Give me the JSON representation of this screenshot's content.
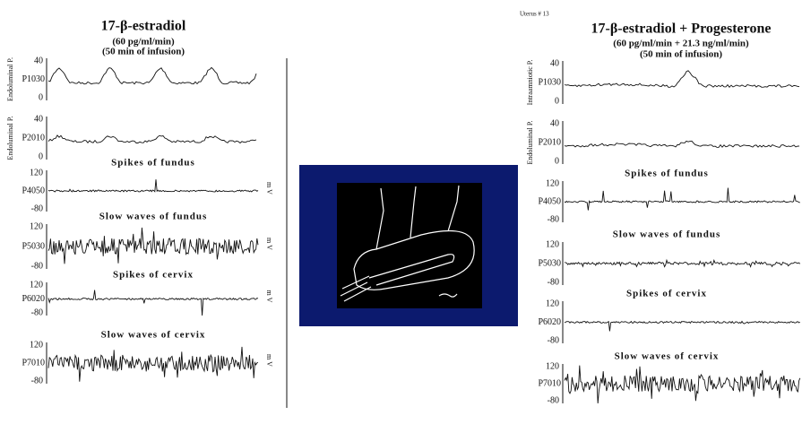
{
  "left": {
    "title": "17-β-estradiol",
    "subtitle": [
      "(60 pg/ml/min)",
      "(50 min of infusion)"
    ],
    "channels": [
      {
        "label": "Endoluminal P.",
        "name": "P1030",
        "ticks": [
          "40",
          "0"
        ]
      },
      {
        "label": "Endoluminal P.",
        "name": "P2010",
        "ticks": [
          "40",
          "0"
        ]
      },
      {
        "label": "Spikes of fundus",
        "name": "P4050",
        "ticks": [
          "120",
          "-80"
        ],
        "unit": "m V"
      },
      {
        "label": "Slow waves of fundus",
        "name": "P5030",
        "ticks": [
          "120",
          "-80"
        ],
        "unit": "m V"
      },
      {
        "label": "Spikes of cervix",
        "name": "P6020",
        "ticks": [
          "120",
          "-80"
        ],
        "unit": "m V"
      },
      {
        "label": "Slow waves of cervix",
        "name": "P7010",
        "ticks": [
          "120",
          "-80"
        ],
        "unit": "m V"
      }
    ]
  },
  "right": {
    "header": "Uterus # 13",
    "title": "17-β-estradiol + Progesterone",
    "subtitle": [
      "(60 pg/ml/min + 21.3 ng/ml/min)",
      "(50 min of infusion)"
    ],
    "channels": [
      {
        "label": "Intraamniotic P.",
        "name": "P1030",
        "ticks": [
          "40",
          "0"
        ]
      },
      {
        "label": "Endoluminal P.",
        "name": "P2010",
        "ticks": [
          "40",
          "0"
        ]
      },
      {
        "label": "Spikes of fundus",
        "name": "P4050",
        "ticks": [
          "120",
          "-80"
        ]
      },
      {
        "label": "Slow waves of fundus",
        "name": "P5030",
        "ticks": [
          "120",
          "-80"
        ]
      },
      {
        "label": "Spikes of cervix",
        "name": "P6020",
        "ticks": [
          "120",
          "-80"
        ]
      },
      {
        "label": "Slow waves of cervix",
        "name": "P7010",
        "ticks": [
          "120",
          "-80"
        ]
      }
    ]
  }
}
